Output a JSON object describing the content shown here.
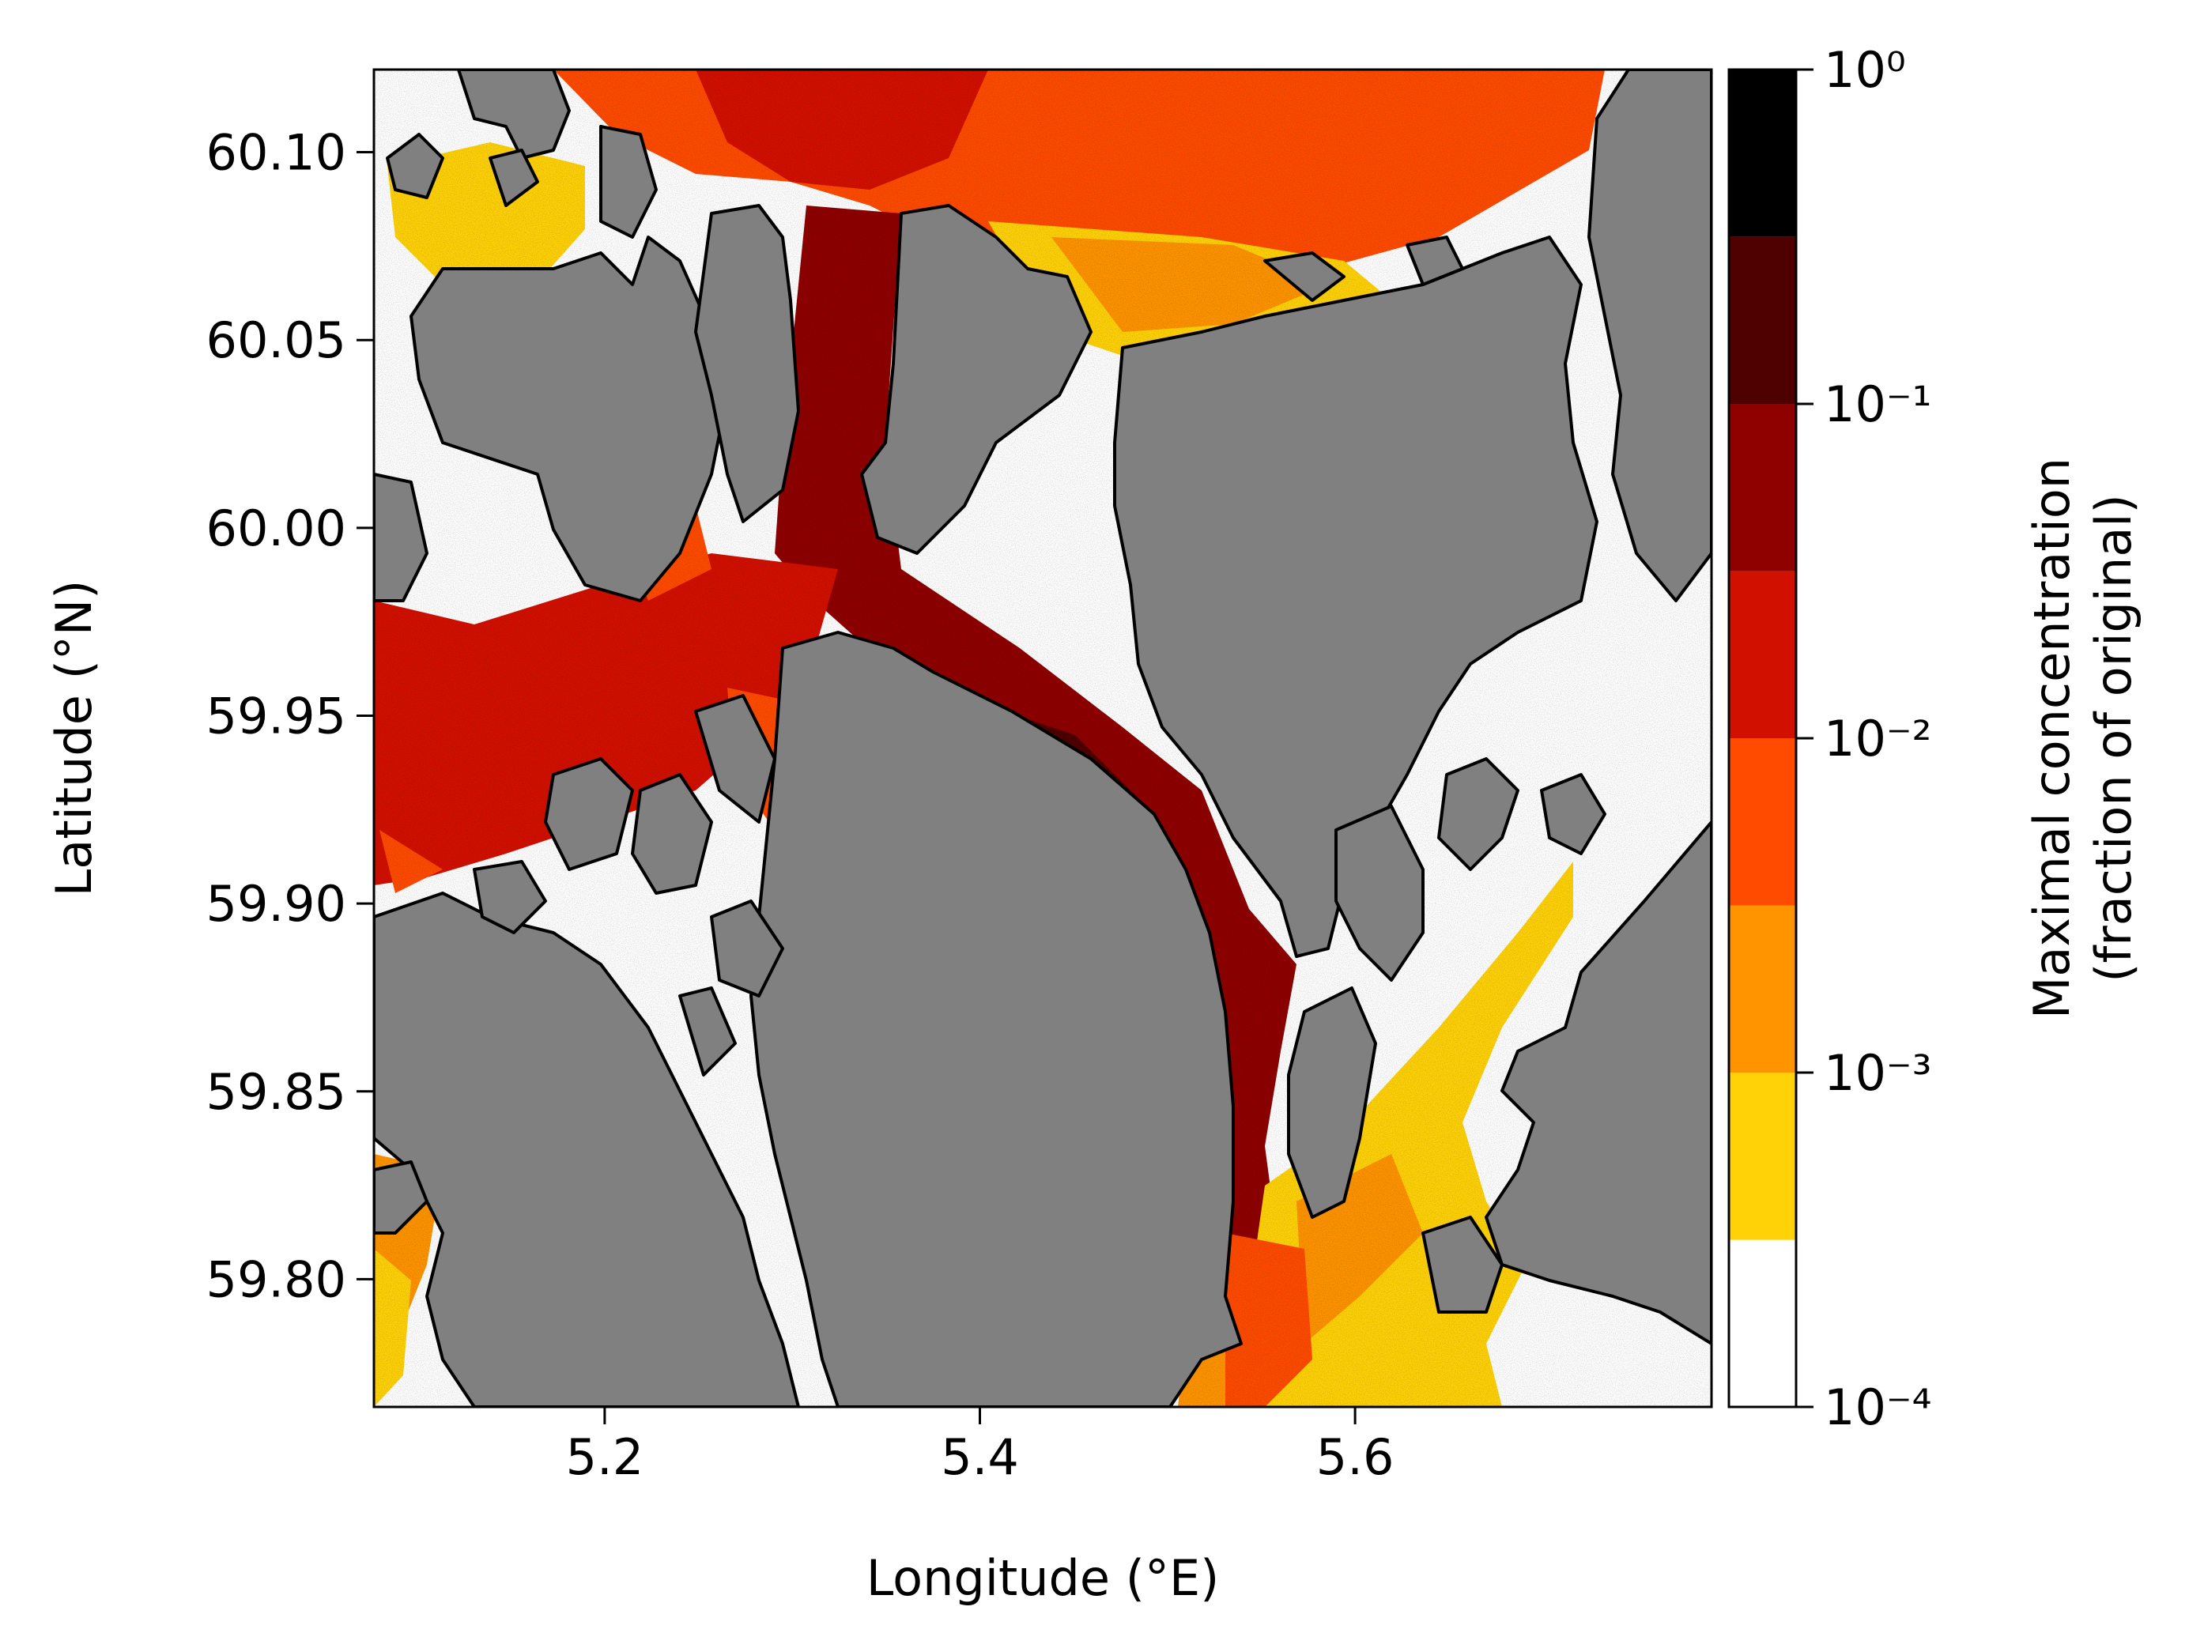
{
  "chart_data": {
    "type": "heatmap",
    "xlabel": "Longitude (°E)",
    "ylabel": "Latitude (°N)",
    "xlim": [
      5.077,
      5.79
    ],
    "ylim": [
      59.766,
      60.122
    ],
    "xticks": [
      5.2,
      5.4,
      5.6
    ],
    "xtick_labels": [
      "5.2",
      "5.4",
      "5.6"
    ],
    "yticks": [
      59.8,
      59.85,
      59.9,
      59.95,
      60.0,
      60.05,
      60.1
    ],
    "ytick_labels": [
      "59.80",
      "59.85",
      "59.90",
      "59.95",
      "60.00",
      "60.05",
      "60.10"
    ],
    "land_color": "#808080",
    "coastline_color": "#000000",
    "colorbar": {
      "label_line1": "Maximal concentration",
      "label_line2": "(fraction of original)",
      "scale": "log",
      "range": [
        0.0001,
        1
      ],
      "bounds": [
        0.0001,
        0.000316,
        0.001,
        0.00316,
        0.01,
        0.0316,
        0.1,
        0.316,
        1
      ],
      "colors": [
        "#ffffff",
        "#ffd208",
        "#ff9400",
        "#ff4b00",
        "#d21000",
        "#8f0000",
        "#4f0000",
        "#000000"
      ],
      "ticks": [
        0.0001,
        0.001,
        0.01,
        0.1,
        1
      ],
      "tick_labels": [
        "10⁻⁴",
        "10⁻³",
        "10⁻²",
        "10⁻¹",
        "10⁰"
      ]
    }
  }
}
